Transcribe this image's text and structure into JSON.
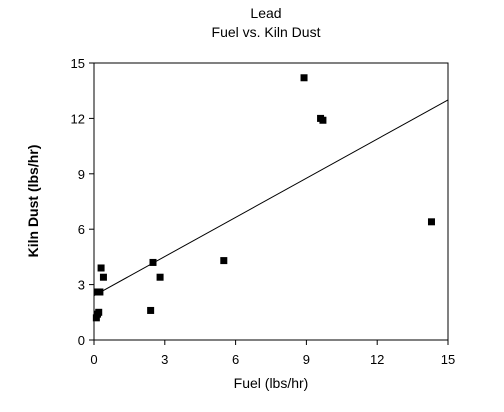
{
  "chart_data": {
    "type": "scatter",
    "title": "Lead",
    "subtitle": "Fuel vs. Kiln Dust",
    "xlabel": "Fuel (lbs/hr)",
    "ylabel": "Kiln Dust (lbs/hr)",
    "xlim": [
      0,
      15
    ],
    "ylim": [
      0,
      15
    ],
    "xticks": [
      0,
      3,
      6,
      9,
      12,
      15
    ],
    "yticks": [
      0,
      3,
      6,
      9,
      12,
      15
    ],
    "grid": false,
    "legend": "none",
    "points": [
      {
        "x": 0.1,
        "y": 1.2
      },
      {
        "x": 0.15,
        "y": 1.4
      },
      {
        "x": 0.2,
        "y": 1.5
      },
      {
        "x": 0.15,
        "y": 2.6
      },
      {
        "x": 0.25,
        "y": 2.6
      },
      {
        "x": 0.3,
        "y": 3.9
      },
      {
        "x": 0.4,
        "y": 3.4
      },
      {
        "x": 2.4,
        "y": 1.6
      },
      {
        "x": 2.5,
        "y": 4.2
      },
      {
        "x": 2.8,
        "y": 3.4
      },
      {
        "x": 5.5,
        "y": 4.3
      },
      {
        "x": 8.9,
        "y": 14.2
      },
      {
        "x": 9.6,
        "y": 12.0
      },
      {
        "x": 9.7,
        "y": 11.9
      },
      {
        "x": 14.3,
        "y": 6.4
      }
    ],
    "trendline": {
      "x": [
        0,
        15
      ],
      "y": [
        2.4,
        13.0
      ]
    },
    "colors": {
      "marker": "#000000",
      "line": "#000000",
      "axis": "#000000"
    }
  }
}
